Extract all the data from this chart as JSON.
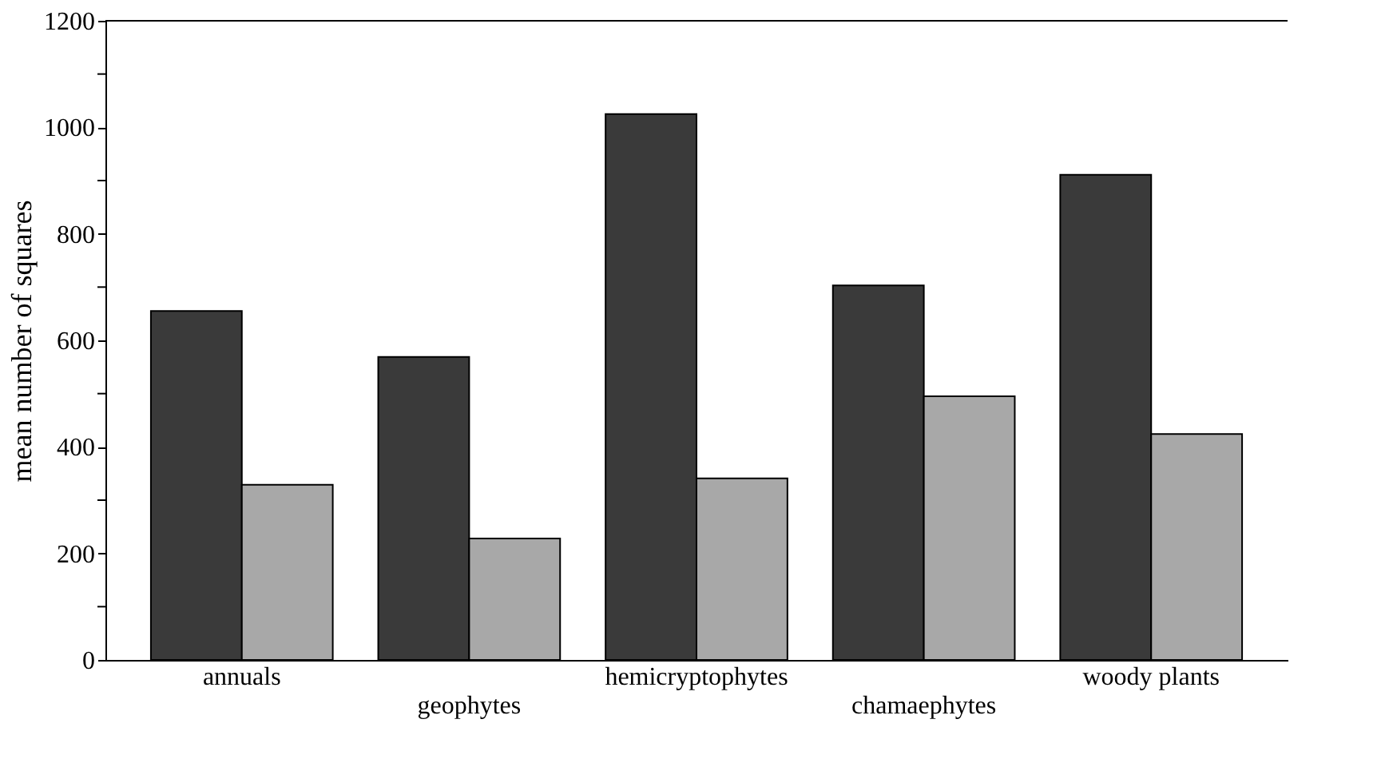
{
  "chart_data": {
    "type": "bar",
    "ylabel": "mean number of squares",
    "categories": [
      "annuals",
      "geophytes",
      "hemicryptophytes",
      "chamaephytes",
      "woody plants"
    ],
    "series": [
      {
        "color": "#3a3a3a",
        "values": [
          655,
          569,
          1025,
          703,
          911
        ]
      },
      {
        "color": "#a8a8a8",
        "values": [
          329,
          228,
          341,
          495,
          424
        ]
      }
    ],
    "ylim": [
      0,
      1200
    ],
    "yticks": [
      0,
      {
        "value": 100,
        "label": null
      },
      200,
      {
        "value": 300,
        "label": null
      },
      400,
      {
        "value": 500,
        "label": null
      },
      600,
      {
        "value": 700,
        "label": null
      },
      800,
      {
        "value": 900,
        "label": null
      },
      1000,
      {
        "value": 1100,
        "label": null
      },
      1200
    ],
    "grid": false
  }
}
